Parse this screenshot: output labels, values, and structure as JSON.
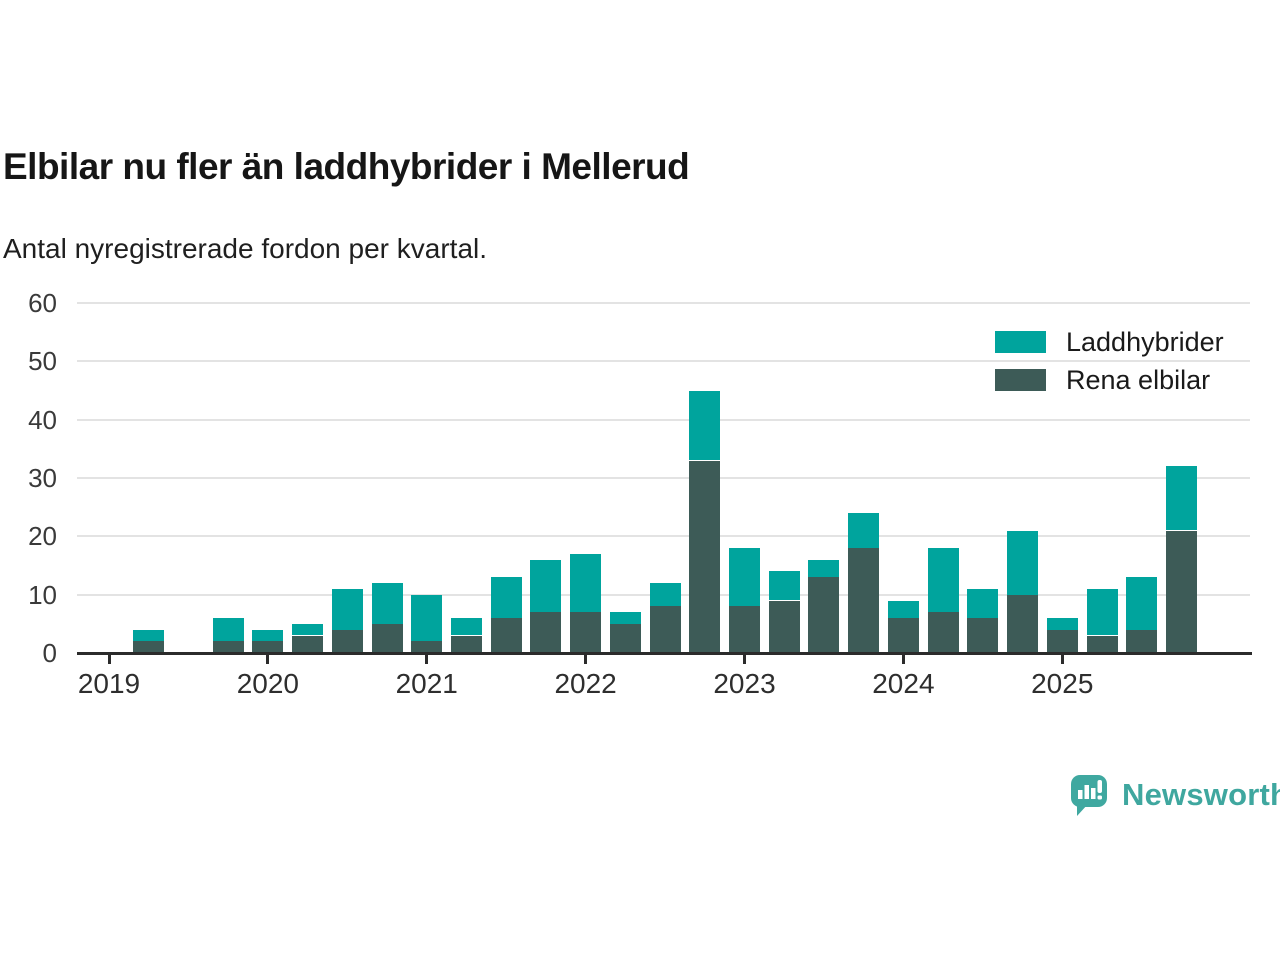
{
  "header": {
    "title": "Elbilar nu fler än laddhybrider i Mellerud",
    "subtitle": "Antal nyregistrerade fordon per kvartal."
  },
  "legend": [
    {
      "label": "Laddhybrider",
      "color": "#00a49d"
    },
    {
      "label": "Rena elbilar",
      "color": "#3d5b57"
    }
  ],
  "footer": {
    "brand": "Newsworthy",
    "brand_color": "#3fa79f"
  },
  "chart_data": {
    "type": "bar",
    "stacked": true,
    "title": "Elbilar nu fler än laddhybrider i Mellerud",
    "subtitle": "Antal nyregistrerade fordon per kvartal.",
    "categories": [
      "2019 Q1",
      "2019 Q2",
      "2019 Q3",
      "2019 Q4",
      "2020 Q1",
      "2020 Q2",
      "2020 Q3",
      "2020 Q4",
      "2021 Q1",
      "2021 Q2",
      "2021 Q3",
      "2021 Q4",
      "2022 Q1",
      "2022 Q2",
      "2022 Q3",
      "2022 Q4",
      "2023 Q1",
      "2023 Q2",
      "2023 Q3",
      "2023 Q4",
      "2024 Q1",
      "2024 Q2",
      "2024 Q3",
      "2024 Q4",
      "2025 Q1",
      "2025 Q2",
      "2025 Q3",
      "2025 Q4"
    ],
    "series": [
      {
        "name": "Rena elbilar",
        "color": "#3d5b57",
        "values": [
          0,
          2,
          0,
          2,
          2,
          3,
          4,
          5,
          2,
          3,
          6,
          7,
          7,
          5,
          8,
          33,
          8,
          9,
          13,
          18,
          6,
          7,
          6,
          10,
          4,
          3,
          4,
          21
        ]
      },
      {
        "name": "Laddhybrider",
        "color": "#00a49d",
        "values": [
          0,
          2,
          0,
          4,
          2,
          2,
          7,
          7,
          8,
          3,
          7,
          9,
          10,
          2,
          4,
          12,
          10,
          5,
          3,
          6,
          3,
          11,
          5,
          11,
          2,
          8,
          9,
          11
        ]
      }
    ],
    "totals": [
      0,
      4,
      0,
      6,
      4,
      5,
      11,
      12,
      10,
      6,
      13,
      16,
      17,
      7,
      12,
      45,
      18,
      14,
      16,
      24,
      9,
      18,
      11,
      21,
      6,
      11,
      13,
      32
    ],
    "ylim": [
      0,
      60
    ],
    "yticks": [
      0,
      10,
      20,
      30,
      40,
      50,
      60
    ],
    "xticks": [
      "2019",
      "2020",
      "2021",
      "2022",
      "2023",
      "2024",
      "2025"
    ],
    "grid": true,
    "legend_position": "top-right",
    "axis_color": "#2b2b2b",
    "grid_color": "#e3e3e3"
  }
}
